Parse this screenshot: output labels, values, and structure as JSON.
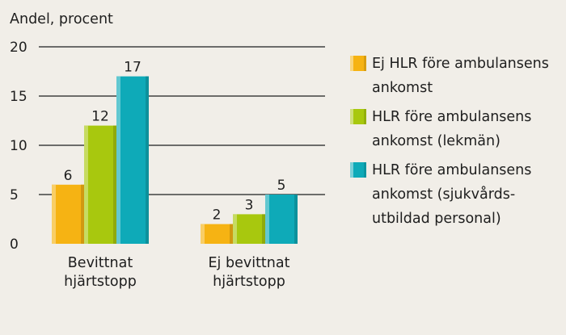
{
  "chart_data": {
    "type": "bar",
    "ylabel": "Andel, procent",
    "ylim": [
      0,
      20
    ],
    "yticks": [
      0,
      5,
      10,
      15,
      20
    ],
    "grid": true,
    "legend_position": "right",
    "categories": [
      "Bevittnat\nhjärtstopp",
      "Ej bevittnat\nhjärtstopp"
    ],
    "series": [
      {
        "name": "Ej HLR före ambulansens\nankomst",
        "color": "#f6b313",
        "values": [
          6,
          2
        ]
      },
      {
        "name": "HLR före ambulansens\nankomst (lekmän)",
        "color": "#a8c80e",
        "values": [
          12,
          3
        ]
      },
      {
        "name": "HLR före ambulansens\nankomst (sjukvårds-\nutbildad personal)",
        "color": "#0eaab8",
        "values": [
          17,
          5
        ]
      }
    ]
  }
}
